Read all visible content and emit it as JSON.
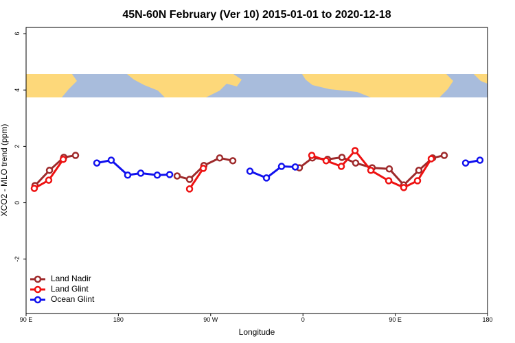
{
  "chart_data": {
    "type": "line",
    "title": "45N-60N February (Ver 10)   2015-01-01 to 2020-12-18",
    "x_label": "Longitude",
    "y_label": "XCO2 - MLO trend (ppm)",
    "xlim": [
      90,
      540
    ],
    "ylim": [
      -3.93,
      6.22
    ],
    "xticks": [
      {
        "value": 90,
        "label": "90 E"
      },
      {
        "value": 180,
        "label": "180"
      },
      {
        "value": 270,
        "label": "90 W"
      },
      {
        "value": 360,
        "label": "0"
      },
      {
        "value": 450,
        "label": "90 E"
      },
      {
        "value": 540,
        "label": "180"
      }
    ],
    "yticks": [
      -2,
      0,
      2,
      4,
      6
    ],
    "legend": "bottom-left",
    "series": [
      {
        "name": "Land Nadir",
        "color": "#9e2a2b",
        "x": [
          98.7,
          112.8,
          126.8,
          138.2,
          null,
          237.3,
          249.4,
          263.4,
          278.8,
          291.6,
          null,
          356.5,
          369.2,
          384,
          398,
          411.4,
          427.5,
          444.2,
          458.3,
          473,
          486.4,
          497.8
        ],
        "values": [
          0.61,
          1.15,
          1.61,
          1.68,
          null,
          0.95,
          0.83,
          1.32,
          1.59,
          1.49,
          null,
          1.24,
          1.59,
          1.54,
          1.61,
          1.41,
          1.24,
          1.2,
          0.63,
          1.15,
          1.59,
          1.68
        ]
      },
      {
        "name": "Land Glint",
        "color": "#ee1111",
        "x": [
          98,
          112.1,
          126.2,
          null,
          249.4,
          262.8,
          null,
          368.6,
          382.6,
          397.4,
          410.8,
          426.2,
          443.6,
          458.3,
          471.7,
          485.1
        ],
        "values": [
          0.51,
          0.8,
          1.54,
          null,
          0.49,
          1.22,
          null,
          1.68,
          1.49,
          1.29,
          1.85,
          1.15,
          0.78,
          0.54,
          0.78,
          1.56
        ]
      },
      {
        "name": "Ocean Glint",
        "color": "#1111ee",
        "x": [
          159,
          173,
          189.1,
          201.8,
          217.9,
          230,
          null,
          308.3,
          324.4,
          339.1,
          352.5,
          null,
          518.6,
          532.6
        ],
        "values": [
          1.41,
          1.51,
          0.98,
          1.05,
          0.98,
          1.0,
          null,
          1.12,
          0.88,
          1.29,
          1.27,
          null,
          1.41,
          1.51
        ]
      }
    ]
  }
}
